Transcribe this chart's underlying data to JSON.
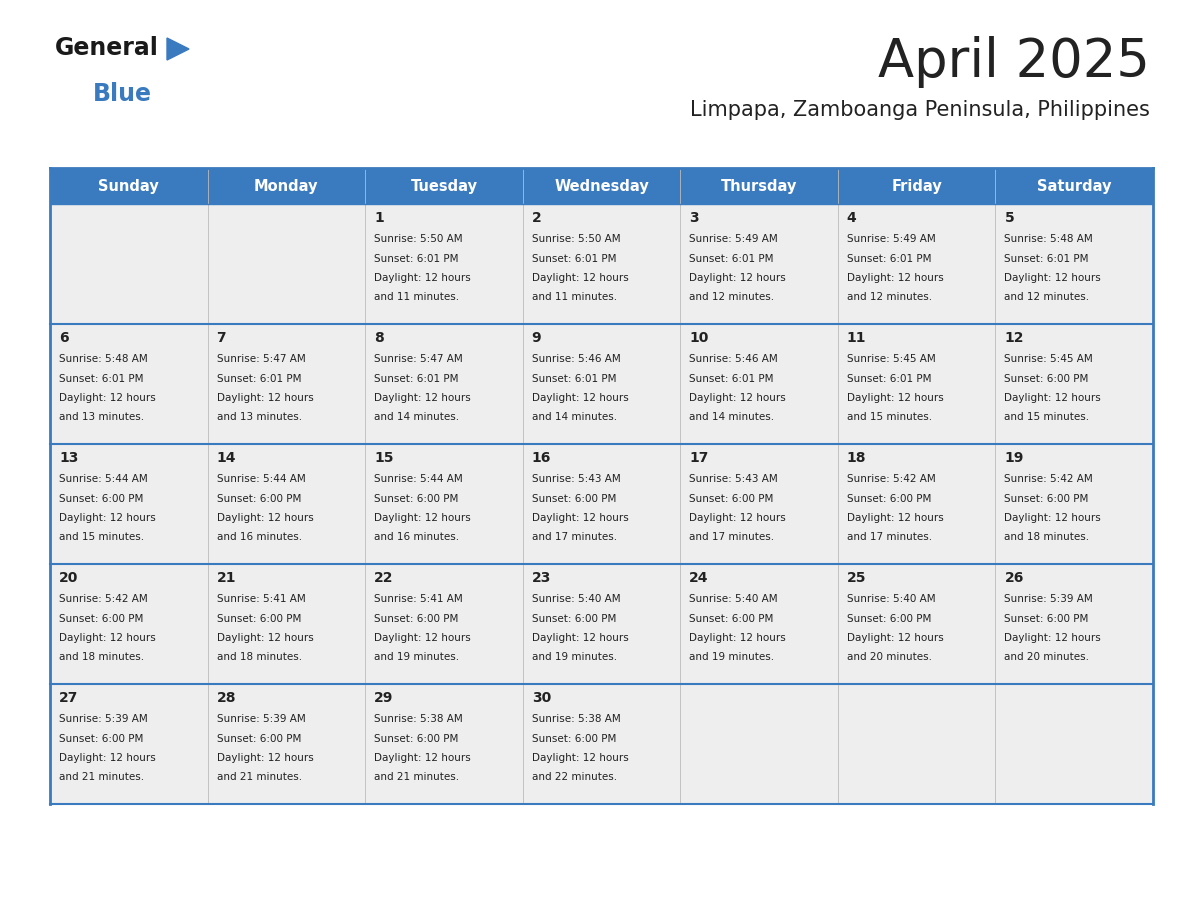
{
  "title": "April 2025",
  "subtitle": "Limpapa, Zamboanga Peninsula, Philippines",
  "header_bg": "#3a7abf",
  "header_text_color": "#ffffff",
  "cell_bg_light": "#eeeeee",
  "text_color": "#222222",
  "border_color": "#3a7abf",
  "days_of_week": [
    "Sunday",
    "Monday",
    "Tuesday",
    "Wednesday",
    "Thursday",
    "Friday",
    "Saturday"
  ],
  "weeks": [
    [
      {
        "day": "",
        "info": ""
      },
      {
        "day": "",
        "info": ""
      },
      {
        "day": "1",
        "info": "Sunrise: 5:50 AM\nSunset: 6:01 PM\nDaylight: 12 hours\nand 11 minutes."
      },
      {
        "day": "2",
        "info": "Sunrise: 5:50 AM\nSunset: 6:01 PM\nDaylight: 12 hours\nand 11 minutes."
      },
      {
        "day": "3",
        "info": "Sunrise: 5:49 AM\nSunset: 6:01 PM\nDaylight: 12 hours\nand 12 minutes."
      },
      {
        "day": "4",
        "info": "Sunrise: 5:49 AM\nSunset: 6:01 PM\nDaylight: 12 hours\nand 12 minutes."
      },
      {
        "day": "5",
        "info": "Sunrise: 5:48 AM\nSunset: 6:01 PM\nDaylight: 12 hours\nand 12 minutes."
      }
    ],
    [
      {
        "day": "6",
        "info": "Sunrise: 5:48 AM\nSunset: 6:01 PM\nDaylight: 12 hours\nand 13 minutes."
      },
      {
        "day": "7",
        "info": "Sunrise: 5:47 AM\nSunset: 6:01 PM\nDaylight: 12 hours\nand 13 minutes."
      },
      {
        "day": "8",
        "info": "Sunrise: 5:47 AM\nSunset: 6:01 PM\nDaylight: 12 hours\nand 14 minutes."
      },
      {
        "day": "9",
        "info": "Sunrise: 5:46 AM\nSunset: 6:01 PM\nDaylight: 12 hours\nand 14 minutes."
      },
      {
        "day": "10",
        "info": "Sunrise: 5:46 AM\nSunset: 6:01 PM\nDaylight: 12 hours\nand 14 minutes."
      },
      {
        "day": "11",
        "info": "Sunrise: 5:45 AM\nSunset: 6:01 PM\nDaylight: 12 hours\nand 15 minutes."
      },
      {
        "day": "12",
        "info": "Sunrise: 5:45 AM\nSunset: 6:00 PM\nDaylight: 12 hours\nand 15 minutes."
      }
    ],
    [
      {
        "day": "13",
        "info": "Sunrise: 5:44 AM\nSunset: 6:00 PM\nDaylight: 12 hours\nand 15 minutes."
      },
      {
        "day": "14",
        "info": "Sunrise: 5:44 AM\nSunset: 6:00 PM\nDaylight: 12 hours\nand 16 minutes."
      },
      {
        "day": "15",
        "info": "Sunrise: 5:44 AM\nSunset: 6:00 PM\nDaylight: 12 hours\nand 16 minutes."
      },
      {
        "day": "16",
        "info": "Sunrise: 5:43 AM\nSunset: 6:00 PM\nDaylight: 12 hours\nand 17 minutes."
      },
      {
        "day": "17",
        "info": "Sunrise: 5:43 AM\nSunset: 6:00 PM\nDaylight: 12 hours\nand 17 minutes."
      },
      {
        "day": "18",
        "info": "Sunrise: 5:42 AM\nSunset: 6:00 PM\nDaylight: 12 hours\nand 17 minutes."
      },
      {
        "day": "19",
        "info": "Sunrise: 5:42 AM\nSunset: 6:00 PM\nDaylight: 12 hours\nand 18 minutes."
      }
    ],
    [
      {
        "day": "20",
        "info": "Sunrise: 5:42 AM\nSunset: 6:00 PM\nDaylight: 12 hours\nand 18 minutes."
      },
      {
        "day": "21",
        "info": "Sunrise: 5:41 AM\nSunset: 6:00 PM\nDaylight: 12 hours\nand 18 minutes."
      },
      {
        "day": "22",
        "info": "Sunrise: 5:41 AM\nSunset: 6:00 PM\nDaylight: 12 hours\nand 19 minutes."
      },
      {
        "day": "23",
        "info": "Sunrise: 5:40 AM\nSunset: 6:00 PM\nDaylight: 12 hours\nand 19 minutes."
      },
      {
        "day": "24",
        "info": "Sunrise: 5:40 AM\nSunset: 6:00 PM\nDaylight: 12 hours\nand 19 minutes."
      },
      {
        "day": "25",
        "info": "Sunrise: 5:40 AM\nSunset: 6:00 PM\nDaylight: 12 hours\nand 20 minutes."
      },
      {
        "day": "26",
        "info": "Sunrise: 5:39 AM\nSunset: 6:00 PM\nDaylight: 12 hours\nand 20 minutes."
      }
    ],
    [
      {
        "day": "27",
        "info": "Sunrise: 5:39 AM\nSunset: 6:00 PM\nDaylight: 12 hours\nand 21 minutes."
      },
      {
        "day": "28",
        "info": "Sunrise: 5:39 AM\nSunset: 6:00 PM\nDaylight: 12 hours\nand 21 minutes."
      },
      {
        "day": "29",
        "info": "Sunrise: 5:38 AM\nSunset: 6:00 PM\nDaylight: 12 hours\nand 21 minutes."
      },
      {
        "day": "30",
        "info": "Sunrise: 5:38 AM\nSunset: 6:00 PM\nDaylight: 12 hours\nand 22 minutes."
      },
      {
        "day": "",
        "info": ""
      },
      {
        "day": "",
        "info": ""
      },
      {
        "day": "",
        "info": ""
      }
    ]
  ],
  "logo_general_color": "#1a1a1a",
  "logo_blue_color": "#3a7abf",
  "logo_triangle_color": "#3a7abf",
  "fig_width": 11.88,
  "fig_height": 9.18,
  "dpi": 100
}
